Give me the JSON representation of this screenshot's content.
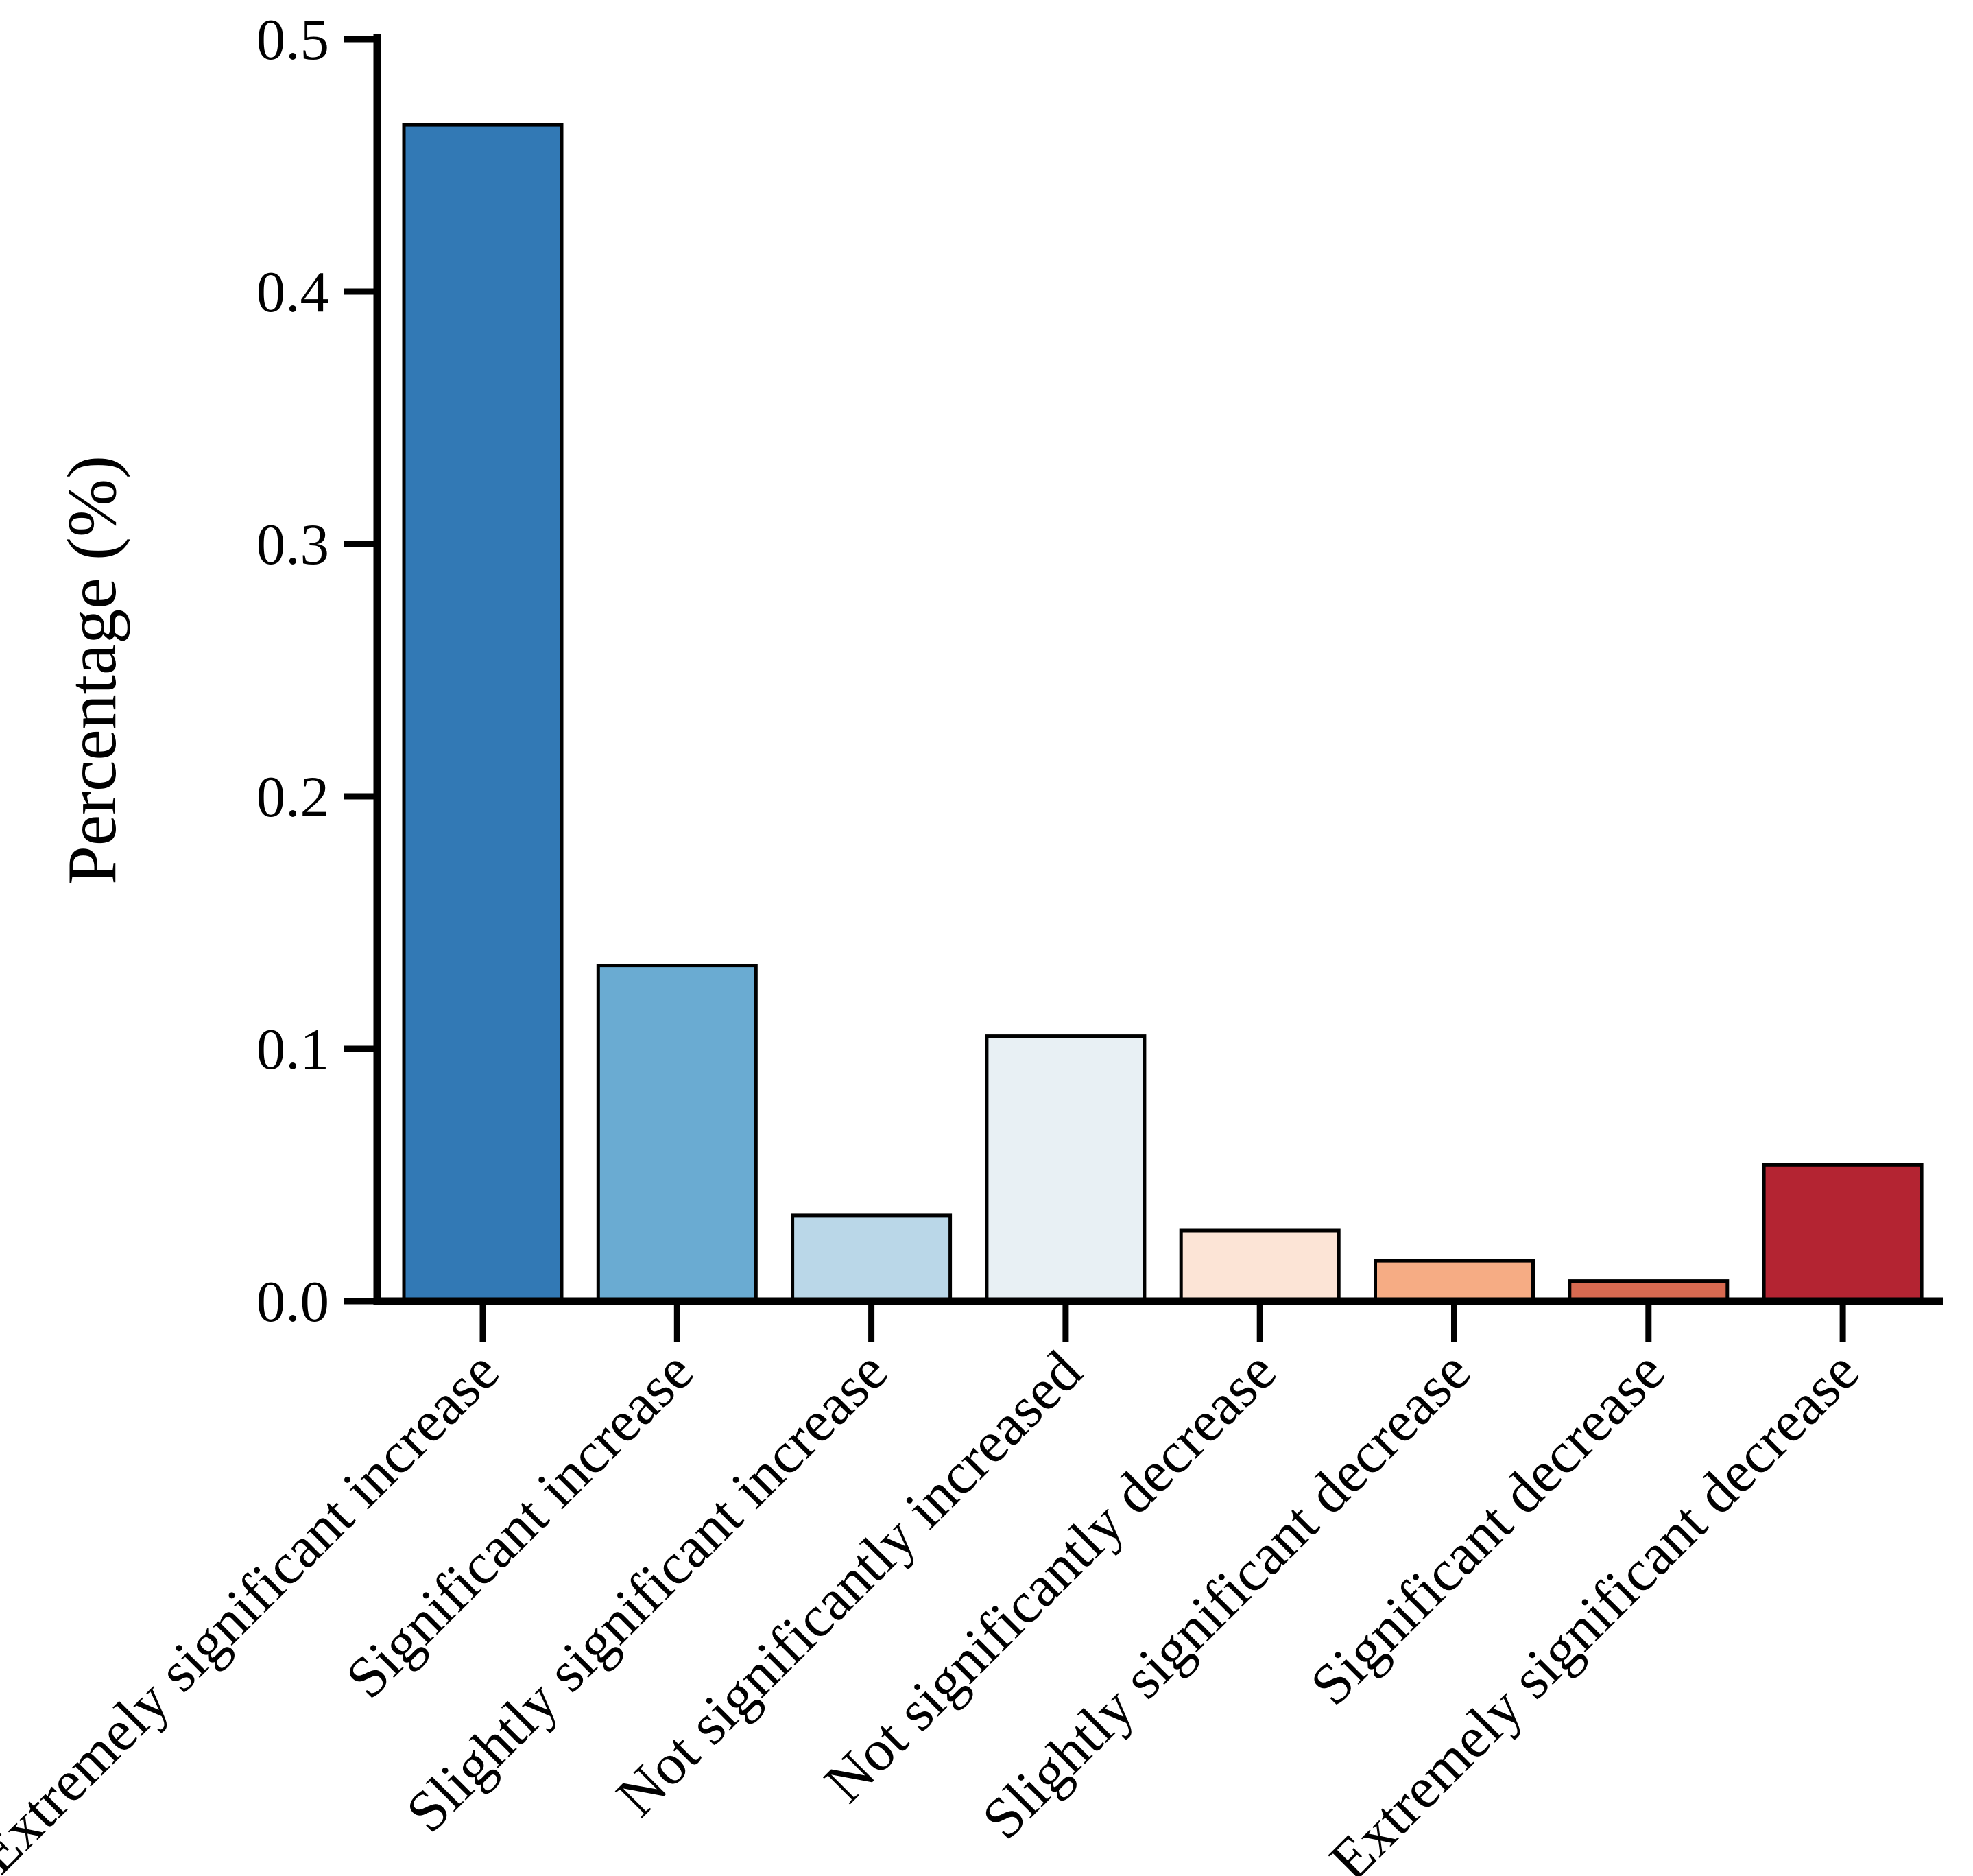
{
  "figure": {
    "background": "#ffffff",
    "axis_color": "#000000"
  },
  "chart_data": {
    "type": "bar",
    "title": "",
    "xlabel": "",
    "ylabel": "Percentage (%)",
    "categories": [
      "Extremely significant increase",
      "Significant increase",
      "Slightly significant increase",
      "Not significantly increased",
      "Not significantly decrease",
      "Slightly significant decrease",
      "Significant decrease",
      "Extremely significant decrease"
    ],
    "values": [
      0.466,
      0.133,
      0.034,
      0.105,
      0.028,
      0.016,
      0.008,
      0.054
    ],
    "bar_colors": [
      "#3279b5",
      "#6aabd2",
      "#bad7e8",
      "#e8f0f4",
      "#fce4d6",
      "#f6ac84",
      "#d76950",
      "#b42432"
    ],
    "bar_edge_color": "#000000",
    "ylim": [
      0.0,
      0.5
    ],
    "yticks": [
      "0.0",
      "0.1",
      "0.2",
      "0.3",
      "0.4",
      "0.5"
    ],
    "ytick_values": [
      0.0,
      0.1,
      0.2,
      0.3,
      0.4,
      0.5
    ],
    "grid": "off",
    "legend": "none",
    "x_label_rotation_deg": 45
  }
}
